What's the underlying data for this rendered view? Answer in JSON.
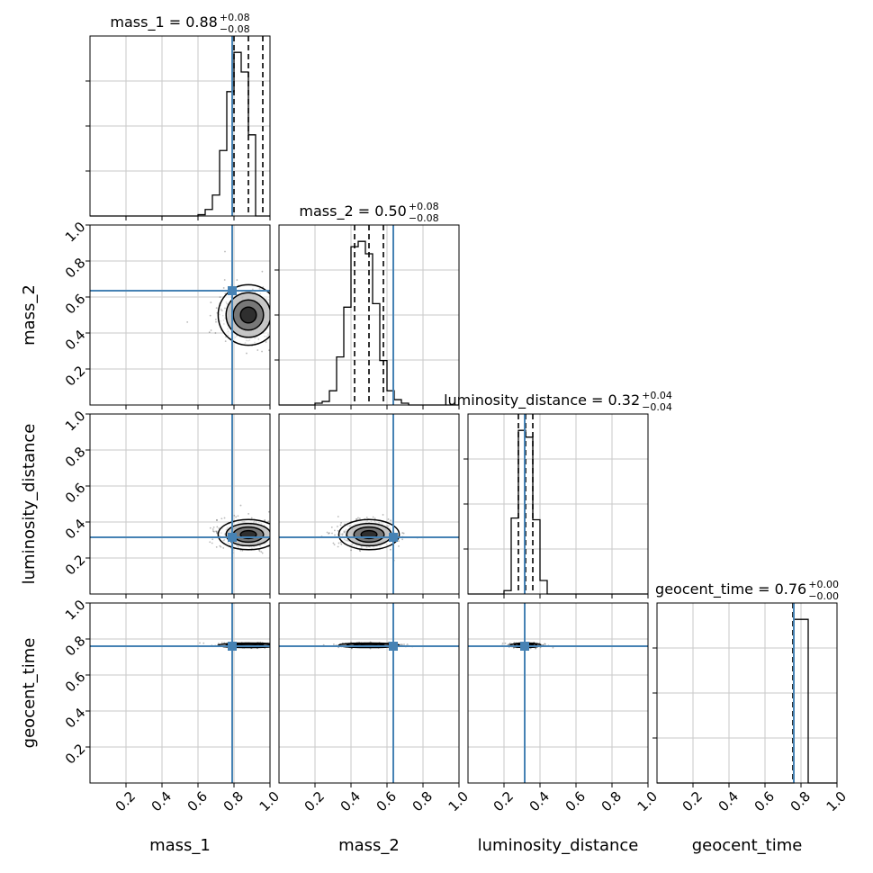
{
  "chart_data": {
    "type": "corner",
    "parameters": [
      "mass_1",
      "mass_2",
      "luminosity_distance",
      "geocent_time"
    ],
    "axis_range": [
      0,
      1
    ],
    "x_ticks": [
      "0.2",
      "0.4",
      "0.6",
      "0.8",
      "1.0"
    ],
    "y_ticks": [
      "0.2",
      "0.4",
      "0.6",
      "0.8",
      "1.0"
    ],
    "grid": true,
    "truth_color": "#4682b4",
    "hist_color": "#000000",
    "truths": [
      0.79,
      0.635,
      0.315,
      0.76
    ],
    "titles": [
      {
        "lhs": "mass_1 = 0.88",
        "plus": "+0.08",
        "minus": "−0.08"
      },
      {
        "lhs": "mass_2 = 0.50",
        "plus": "+0.08",
        "minus": "−0.08"
      },
      {
        "lhs": "luminosity_distance = 0.32",
        "plus": "+0.04",
        "minus": "−0.04"
      },
      {
        "lhs": "geocent_time = 0.76",
        "plus": "+0.00",
        "minus": "−0.00"
      }
    ],
    "quantiles": [
      [
        0.8,
        0.88,
        0.96
      ],
      [
        0.42,
        0.5,
        0.58
      ],
      [
        0.28,
        0.32,
        0.36
      ],
      [
        0.755,
        0.757,
        0.76
      ]
    ],
    "histograms": [
      {
        "bin_width": 0.04,
        "start": 0.6,
        "counts": [
          0.01,
          0.05,
          0.16,
          0.5,
          0.95,
          1.25,
          1.1,
          0.62
        ]
      },
      {
        "bin_width": 0.04,
        "start": 0.2,
        "counts": [
          0.01,
          0.02,
          0.08,
          0.27,
          0.55,
          0.89,
          0.92,
          0.85,
          0.57,
          0.25,
          0.08,
          0.03,
          0.01
        ]
      },
      {
        "bin_width": 0.04,
        "start": 0.2,
        "counts": [
          0.02,
          0.45,
          0.97,
          0.93,
          0.44,
          0.08
        ]
      },
      {
        "bin_width": 0.04,
        "start": 0.72,
        "counts": [
          0.0,
          1.0,
          1.0
        ]
      }
    ],
    "pairs": [
      {
        "row": 1,
        "col": 0,
        "cx": 0.88,
        "cy": 0.5,
        "sx": 0.08,
        "sy": 0.08
      },
      {
        "row": 2,
        "col": 0,
        "cx": 0.88,
        "cy": 0.33,
        "sx": 0.08,
        "sy": 0.04
      },
      {
        "row": 2,
        "col": 1,
        "cx": 0.5,
        "cy": 0.33,
        "sx": 0.08,
        "sy": 0.04
      },
      {
        "row": 3,
        "col": 0,
        "cx": 0.88,
        "cy": 0.765,
        "sx": 0.08,
        "sy": 0.006
      },
      {
        "row": 3,
        "col": 1,
        "cx": 0.5,
        "cy": 0.765,
        "sx": 0.08,
        "sy": 0.006
      },
      {
        "row": 3,
        "col": 2,
        "cx": 0.32,
        "cy": 0.765,
        "sx": 0.04,
        "sy": 0.006
      }
    ]
  }
}
